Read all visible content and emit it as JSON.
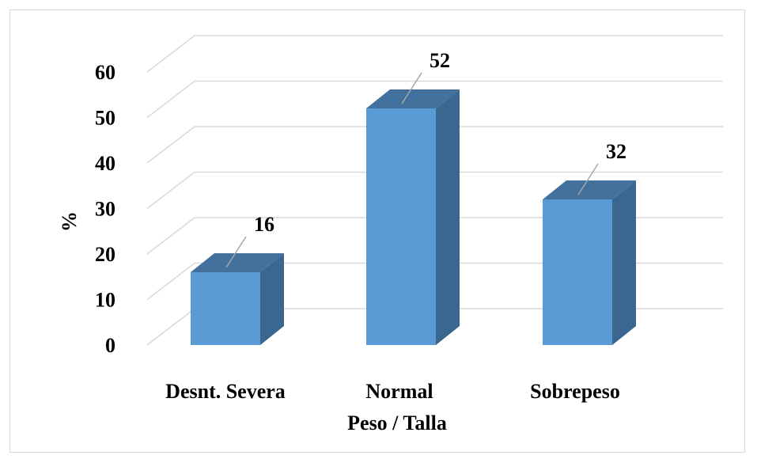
{
  "chart_data": {
    "type": "bar",
    "categories": [
      "Desnt. Severa",
      "Normal",
      "Sobrepeso"
    ],
    "values": [
      16,
      52,
      32
    ],
    "data_labels": [
      "16",
      "52",
      "32"
    ],
    "title": "",
    "xlabel": "Peso / Talla",
    "ylabel": "%",
    "ylim": [
      0,
      60
    ],
    "yticks": [
      "0",
      "10",
      "20",
      "30",
      "40",
      "50",
      "60"
    ],
    "grid": true,
    "legend": "none",
    "style": "3d-column",
    "colors": {
      "bar_front": "#5b9bd5",
      "bar_top": "#41719c",
      "bar_side": "#3a6790",
      "gridline": "#d9d9d9",
      "leader_line": "#a6a6a6"
    }
  }
}
